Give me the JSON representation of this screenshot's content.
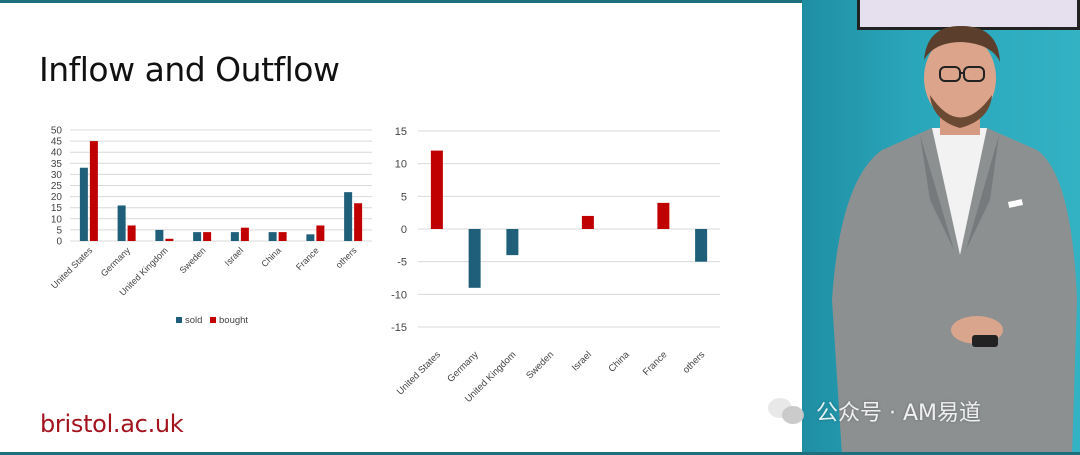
{
  "slide": {
    "title": "Inflow and Outflow",
    "footer_url": "bristol.ac.uk"
  },
  "watermark": {
    "text": "公众号 · AM易道",
    "icon": "wechat-icon"
  },
  "colors": {
    "sold": "#1f5f7a",
    "bought": "#c00000",
    "net_positive": "#c00000",
    "net_negative": "#1f5f7a",
    "grid": "#d9d9d9",
    "brand_red": "#a3141e"
  },
  "chart_data": [
    {
      "type": "bar",
      "categories": [
        "United States",
        "Germany",
        "United Kingdom",
        "Sweden",
        "Israel",
        "China",
        "France",
        "others"
      ],
      "series": [
        {
          "name": "sold",
          "values": [
            33,
            16,
            5,
            4,
            4,
            4,
            3,
            22
          ]
        },
        {
          "name": "bought",
          "values": [
            45,
            7,
            1,
            4,
            6,
            4,
            7,
            17
          ]
        }
      ],
      "ylim": [
        0,
        50
      ],
      "yticks": [
        0,
        5,
        10,
        15,
        20,
        25,
        30,
        35,
        40,
        45,
        50
      ],
      "grid": true,
      "legend": "bottom"
    },
    {
      "type": "bar",
      "categories": [
        "United States",
        "Germany",
        "United Kingdom",
        "Sweden",
        "Israel",
        "China",
        "France",
        "others"
      ],
      "values": [
        12,
        -9,
        -4,
        0,
        2,
        0,
        4,
        -5
      ],
      "ylim": [
        -15,
        15
      ],
      "yticks": [
        -15,
        -10,
        -5,
        0,
        5,
        10,
        15
      ],
      "grid": true,
      "legend": "none"
    }
  ]
}
